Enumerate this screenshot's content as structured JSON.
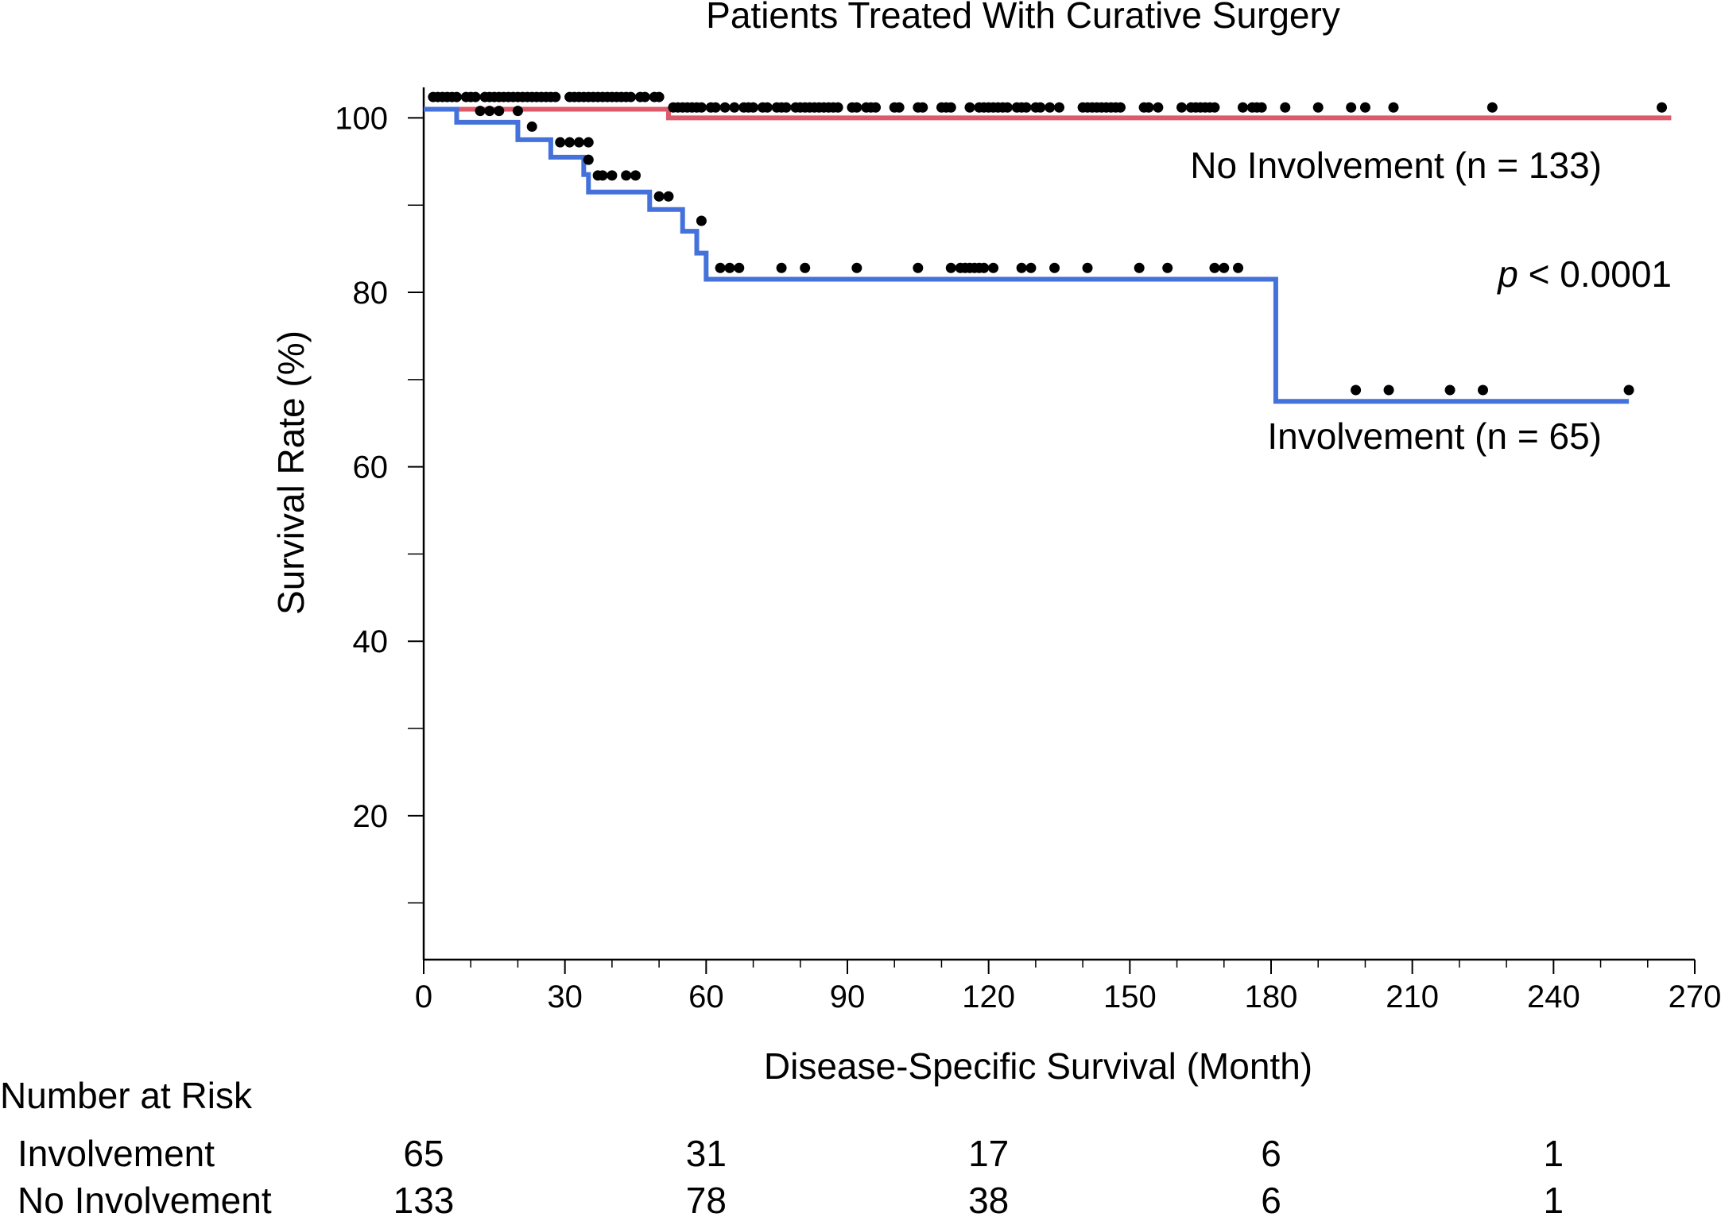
{
  "chart_data": {
    "type": "line",
    "subtype": "kaplan-meier",
    "title": "Patients Treated With Curative Surgery",
    "xlabel": "Disease-Specific Survival (Month)",
    "ylabel": "Survival Rate (%)",
    "xlim": [
      0,
      270
    ],
    "ylim": [
      3.5,
      103.5
    ],
    "x_ticks": [
      0,
      30,
      60,
      90,
      120,
      150,
      180,
      210,
      240,
      270
    ],
    "x_tick_labels": [
      "0",
      "30",
      "60",
      "90",
      "120",
      "150",
      "180",
      "210",
      "240",
      "270"
    ],
    "y_ticks": [
      20,
      40,
      60,
      80,
      100
    ],
    "y_tick_labels": [
      "20",
      "40",
      "60",
      "80",
      "100"
    ],
    "y_minor_ticks": [
      10,
      30,
      50,
      70,
      90
    ],
    "p_value": {
      "prefix": "p",
      "text": " < 0.0001"
    },
    "series": [
      {
        "name": "No Involvement (n = 133)",
        "color": "#dc5a69",
        "steps_x": [
          0,
          52,
          265
        ],
        "steps_y": [
          101.0,
          100.0,
          100.0
        ],
        "censor_x": [
          2,
          3,
          4,
          5,
          6,
          7,
          9,
          10,
          11,
          13,
          14,
          15,
          16,
          17,
          18,
          19,
          20,
          21,
          22,
          23,
          24,
          25,
          26,
          27,
          28,
          31,
          32,
          33,
          34,
          35,
          36,
          37,
          38,
          39,
          40,
          41,
          42,
          43,
          44,
          46,
          47,
          49,
          50,
          53,
          54,
          55,
          56,
          57,
          58,
          59,
          61,
          62,
          64,
          66,
          68,
          69,
          70,
          72,
          73,
          75,
          76,
          77,
          79,
          80,
          81,
          82,
          83,
          84,
          85,
          86,
          87,
          88,
          91,
          92,
          94,
          95,
          96,
          100,
          101,
          105,
          106,
          110,
          111,
          112,
          116,
          118,
          119,
          120,
          121,
          122,
          123,
          124,
          126,
          127,
          128,
          130,
          131,
          133,
          135,
          140,
          141,
          142,
          143,
          144,
          145,
          146,
          147,
          148,
          153,
          154,
          156,
          161,
          163,
          164,
          165,
          166,
          167,
          168,
          174,
          176,
          177,
          178,
          183,
          190,
          197,
          200,
          206,
          227,
          263
        ],
        "censor_y": [
          102.4,
          102.4,
          102.4,
          102.4,
          102.4,
          102.4,
          102.4,
          102.4,
          102.4,
          102.4,
          102.4,
          102.4,
          102.4,
          102.4,
          102.4,
          102.4,
          102.4,
          102.4,
          102.4,
          102.4,
          102.4,
          102.4,
          102.4,
          102.4,
          102.4,
          102.4,
          102.4,
          102.4,
          102.4,
          102.4,
          102.4,
          102.4,
          102.4,
          102.4,
          102.4,
          102.4,
          102.4,
          102.4,
          102.4,
          102.4,
          102.4,
          102.4,
          102.4,
          101.2,
          101.2,
          101.2,
          101.2,
          101.2,
          101.2,
          101.2,
          101.2,
          101.2,
          101.2,
          101.2,
          101.2,
          101.2,
          101.2,
          101.2,
          101.2,
          101.2,
          101.2,
          101.2,
          101.2,
          101.2,
          101.2,
          101.2,
          101.2,
          101.2,
          101.2,
          101.2,
          101.2,
          101.2,
          101.2,
          101.2,
          101.2,
          101.2,
          101.2,
          101.2,
          101.2,
          101.2,
          101.2,
          101.2,
          101.2,
          101.2,
          101.2,
          101.2,
          101.2,
          101.2,
          101.2,
          101.2,
          101.2,
          101.2,
          101.2,
          101.2,
          101.2,
          101.2,
          101.2,
          101.2,
          101.2,
          101.2,
          101.2,
          101.2,
          101.2,
          101.2,
          101.2,
          101.2,
          101.2,
          101.2,
          101.2,
          101.2,
          101.2,
          101.2,
          101.2,
          101.2,
          101.2,
          101.2,
          101.2,
          101.2,
          101.2,
          101.2,
          101.2,
          101.2,
          101.2,
          101.2,
          101.2,
          101.2,
          101.2,
          101.2,
          101.2,
          101.2,
          101.2,
          101.2
        ]
      },
      {
        "name": "Involvement (n = 65)",
        "color": "#4472da",
        "steps_x": [
          0,
          7,
          20,
          27,
          34,
          35,
          48,
          55,
          58,
          60,
          181,
          256
        ],
        "steps_y": [
          101.0,
          99.5,
          97.5,
          95.5,
          93.5,
          91.5,
          89.5,
          87.0,
          84.5,
          81.5,
          67.5,
          67.5
        ],
        "censor_x": [
          12,
          14,
          16,
          20,
          23,
          29,
          31,
          33,
          35,
          35,
          37,
          38,
          40,
          43,
          45,
          50,
          52,
          59,
          63,
          65,
          67,
          76,
          81,
          92,
          105,
          112,
          114,
          115,
          116,
          117,
          118,
          119,
          121,
          127,
          129,
          134,
          141,
          152,
          158,
          168,
          170,
          173,
          198,
          205,
          218,
          225,
          256
        ],
        "censor_y": [
          100.8,
          100.8,
          100.8,
          100.8,
          99.0,
          97.2,
          97.2,
          97.2,
          97.2,
          95.2,
          93.4,
          93.4,
          93.4,
          93.4,
          93.4,
          91.0,
          91.0,
          88.2,
          82.8,
          82.8,
          82.8,
          82.8,
          82.8,
          82.8,
          82.8,
          82.8,
          82.8,
          82.8,
          82.8,
          82.8,
          82.8,
          82.8,
          82.8,
          82.8,
          82.8,
          82.8,
          82.8,
          82.8,
          82.8,
          82.8,
          82.8,
          82.8,
          68.8,
          68.8,
          68.8,
          68.8,
          68.8
        ]
      }
    ],
    "risk_table": {
      "title": "Number at Risk",
      "time_points": [
        0,
        60,
        120,
        180,
        240
      ],
      "rows": [
        {
          "label": "Involvement",
          "values": [
            "65",
            "31",
            "17",
            "6",
            "1"
          ]
        },
        {
          "label": "No Involvement",
          "values": [
            "133",
            "78",
            "38",
            "6",
            "1"
          ]
        }
      ]
    }
  }
}
